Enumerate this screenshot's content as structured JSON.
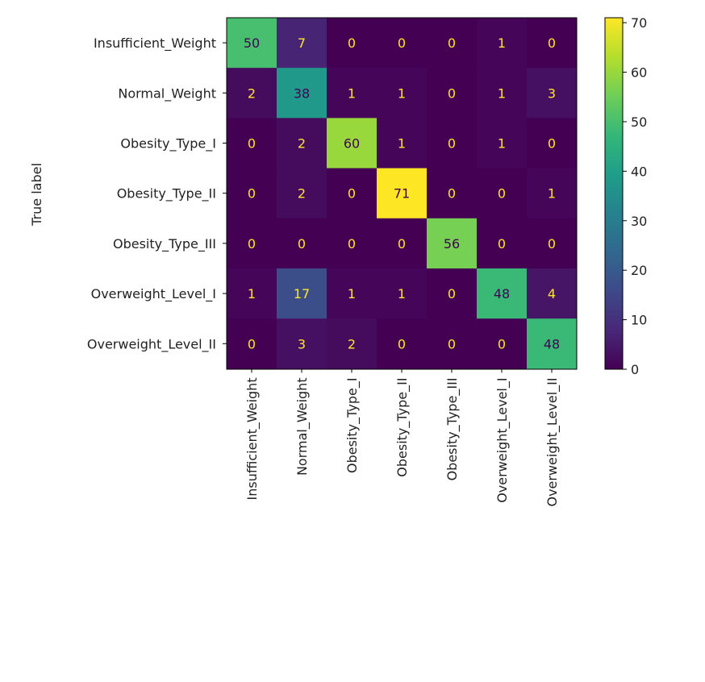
{
  "chart_data": {
    "type": "heatmap",
    "title": "",
    "xlabel": "",
    "ylabel": "True label",
    "x_categories": [
      "Insufficient_Weight",
      "Normal_Weight",
      "Obesity_Type_I",
      "Obesity_Type_II",
      "Obesity_Type_III",
      "Overweight_Level_I",
      "Overweight_Level_II"
    ],
    "y_categories": [
      "Insufficient_Weight",
      "Normal_Weight",
      "Obesity_Type_I",
      "Obesity_Type_II",
      "Obesity_Type_III",
      "Overweight_Level_I",
      "Overweight_Level_II"
    ],
    "matrix": [
      [
        50,
        7,
        0,
        0,
        0,
        1,
        0
      ],
      [
        2,
        38,
        1,
        1,
        0,
        1,
        3
      ],
      [
        0,
        2,
        60,
        1,
        0,
        1,
        0
      ],
      [
        0,
        2,
        0,
        71,
        0,
        0,
        1
      ],
      [
        0,
        0,
        0,
        0,
        56,
        0,
        0
      ],
      [
        1,
        17,
        1,
        1,
        0,
        48,
        4
      ],
      [
        0,
        3,
        2,
        0,
        0,
        0,
        48
      ]
    ],
    "colormap": "viridis",
    "colorbar": {
      "vmin": 0,
      "vmax": 71,
      "ticks": [
        0,
        10,
        20,
        30,
        40,
        50,
        60,
        70
      ]
    },
    "text_colors": {
      "dark_cell": "#fde725",
      "light_cell": "#440154"
    }
  }
}
